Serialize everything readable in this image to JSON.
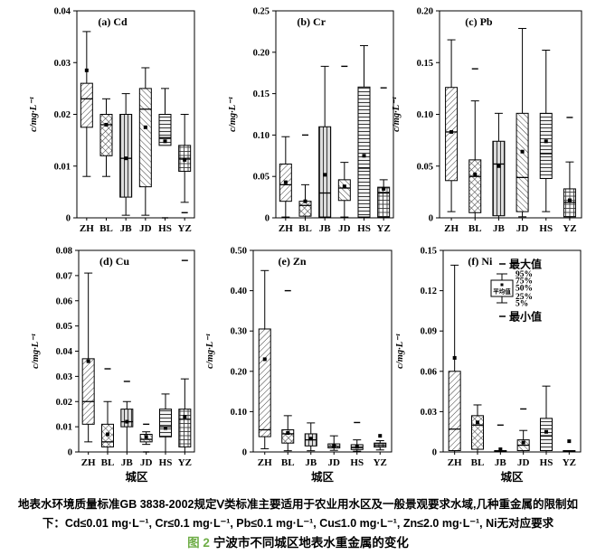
{
  "axis": {
    "ylabel": "c/mg·L⁻¹",
    "xlabel": "城区"
  },
  "categories": [
    "ZH",
    "BL",
    "JB",
    "JD",
    "HS",
    "YZ"
  ],
  "city_patterns": {
    "ZH": "diagonal-up",
    "BL": "crosshatch",
    "JB": "vertical-lines",
    "JD": "diagonal-down",
    "HS": "horizontal-lines",
    "YZ": "grid"
  },
  "legend": {
    "max_label": "最大值",
    "min_label": "最小值",
    "mean_label": "平均值",
    "percent_labels": [
      "95%",
      "75%",
      "50%",
      "25%",
      "5%"
    ]
  },
  "caption": {
    "line1": "地表水环境质量标准GB 3838-2002规定Ⅴ类标准主要适用于农业用水区及一般景观要求水域,几种重金属的限制如",
    "line2": "下：Cd≤0.01 mg·L⁻¹, Cr≤0.1 mg·L⁻¹, Pb≤0.1 mg·L⁻¹, Cu≤1.0 mg·L⁻¹, Zn≤2.0 mg·L⁻¹, Ni无对应要求",
    "fig_label": "图 2",
    "fig_title": "宁波市不同城区地表水重金属的变化",
    "fig_label_color": "#6fad47"
  },
  "chart_data": [
    {
      "type": "box",
      "panel": "(a) Cd",
      "ylabel": "c/mg·L⁻¹",
      "ylim": [
        0,
        0.04
      ],
      "yticks": [
        0,
        0.01,
        0.02,
        0.03,
        0.04
      ],
      "ytick_labels": [
        "0",
        "0.01",
        "0.02",
        "0.03",
        "0.04"
      ],
      "boxes": [
        {
          "city": "ZH",
          "whisker_low": 0.008,
          "q1": 0.0175,
          "median": 0.023,
          "q3": 0.026,
          "whisker_high": 0.036,
          "mean": 0.0285
        },
        {
          "city": "BL",
          "whisker_low": 0.008,
          "q1": 0.012,
          "median": 0.018,
          "q3": 0.02,
          "whisker_high": 0.023,
          "mean": 0.018
        },
        {
          "city": "JB",
          "whisker_low": 0.0005,
          "q1": 0.004,
          "median": 0.0115,
          "q3": 0.02,
          "whisker_high": 0.024,
          "mean": 0.0115
        },
        {
          "city": "JD",
          "whisker_low": 0.0005,
          "q1": 0.006,
          "median": 0.021,
          "q3": 0.025,
          "whisker_high": 0.029,
          "mean": 0.0175
        },
        {
          "city": "HS",
          "whisker_low": 0.014,
          "q1": 0.014,
          "median": 0.0155,
          "q3": 0.02,
          "whisker_high": 0.025,
          "mean": 0.0148,
          "min": 0.0
        },
        {
          "city": "YZ",
          "whisker_low": 0.003,
          "q1": 0.009,
          "median": 0.0115,
          "q3": 0.014,
          "whisker_high": 0.02,
          "mean": 0.0112,
          "min": 0.001
        }
      ]
    },
    {
      "type": "box",
      "panel": "(b) Cr",
      "ylabel": "c/mg·L⁻¹",
      "ylim": [
        0,
        0.25
      ],
      "yticks": [
        0,
        0.05,
        0.1,
        0.15,
        0.2,
        0.25
      ],
      "ytick_labels": [
        "0",
        "0.05",
        "0.10",
        "0.15",
        "0.20",
        "0.25"
      ],
      "boxes": [
        {
          "city": "ZH",
          "whisker_low": 0.001,
          "q1": 0.02,
          "median": 0.04,
          "q3": 0.065,
          "whisker_high": 0.098,
          "mean": 0.043
        },
        {
          "city": "BL",
          "whisker_low": 0.0,
          "q1": 0.002,
          "median": 0.015,
          "q3": 0.02,
          "whisker_high": 0.04,
          "mean": 0.02,
          "max": 0.1
        },
        {
          "city": "JB",
          "whisker_low": 0.0,
          "q1": 0.001,
          "median": 0.03,
          "q3": 0.11,
          "whisker_high": 0.183,
          "mean": 0.052
        },
        {
          "city": "JD",
          "whisker_low": 0.001,
          "q1": 0.021,
          "median": 0.036,
          "q3": 0.046,
          "whisker_high": 0.067,
          "mean": 0.038,
          "max": 0.183
        },
        {
          "city": "HS",
          "whisker_low": 0.0,
          "q1": 0.001,
          "median": 0.06,
          "q3": 0.158,
          "whisker_high": 0.208,
          "mean": 0.075
        },
        {
          "city": "YZ",
          "whisker_low": 0.0,
          "q1": 0.001,
          "median": 0.03,
          "q3": 0.037,
          "whisker_high": 0.046,
          "mean": 0.035,
          "max": 0.157
        }
      ]
    },
    {
      "type": "box",
      "panel": "(c) Pb",
      "ylabel": "c/mg·L⁻¹",
      "ylim": [
        0,
        0.2
      ],
      "yticks": [
        0,
        0.05,
        0.1,
        0.15,
        0.2
      ],
      "ytick_labels": [
        "0",
        "0.05",
        "0.10",
        "0.15",
        "0.20"
      ],
      "boxes": [
        {
          "city": "ZH",
          "whisker_low": 0.006,
          "q1": 0.036,
          "median": 0.083,
          "q3": 0.126,
          "whisker_high": 0.172,
          "mean": 0.083
        },
        {
          "city": "BL",
          "whisker_low": 0.0,
          "q1": 0.005,
          "median": 0.04,
          "q3": 0.056,
          "whisker_high": 0.113,
          "mean": 0.042,
          "max": 0.144
        },
        {
          "city": "JB",
          "whisker_low": 0.0,
          "q1": 0.002,
          "median": 0.052,
          "q3": 0.074,
          "whisker_high": 0.101,
          "mean": 0.05
        },
        {
          "city": "JD",
          "whisker_low": 0.001,
          "q1": 0.006,
          "median": 0.039,
          "q3": 0.101,
          "whisker_high": 0.183,
          "mean": 0.064
        },
        {
          "city": "HS",
          "whisker_low": 0.006,
          "q1": 0.038,
          "median": 0.062,
          "q3": 0.101,
          "whisker_high": 0.162,
          "mean": 0.074
        },
        {
          "city": "YZ",
          "whisker_low": 0.0,
          "q1": 0.001,
          "median": 0.015,
          "q3": 0.028,
          "whisker_high": 0.054,
          "mean": 0.017,
          "max": 0.097
        }
      ]
    },
    {
      "type": "box",
      "panel": "(d) Cu",
      "ylabel": "c/mg·L⁻¹",
      "ylim": [
        0,
        0.08
      ],
      "yticks": [
        0,
        0.01,
        0.02,
        0.03,
        0.04,
        0.05,
        0.06,
        0.07,
        0.08
      ],
      "ytick_labels": [
        "0",
        "0.01",
        "0.02",
        "0.03",
        "0.04",
        "0.05",
        "0.06",
        "0.07",
        "0.08"
      ],
      "boxes": [
        {
          "city": "ZH",
          "whisker_low": 0.004,
          "q1": 0.011,
          "median": 0.02,
          "q3": 0.037,
          "whisker_high": 0.071,
          "mean": 0.036
        },
        {
          "city": "BL",
          "whisker_low": 0.0,
          "q1": 0.002,
          "median": 0.004,
          "q3": 0.011,
          "whisker_high": 0.02,
          "mean": 0.007,
          "max": 0.033
        },
        {
          "city": "JB",
          "whisker_low": 0.0,
          "q1": 0.01,
          "median": 0.012,
          "q3": 0.017,
          "whisker_high": 0.02,
          "mean": 0.012,
          "max": 0.028
        },
        {
          "city": "JD",
          "whisker_low": 0.003,
          "q1": 0.004,
          "median": 0.005,
          "q3": 0.007,
          "whisker_high": 0.008,
          "mean": 0.006,
          "max": 0.011,
          "min": 0.0
        },
        {
          "city": "HS",
          "whisker_low": 0.0,
          "q1": 0.006,
          "median": 0.01,
          "q3": 0.017,
          "whisker_high": 0.023,
          "mean": 0.0095
        },
        {
          "city": "YZ",
          "whisker_low": 0.0,
          "q1": 0.002,
          "median": 0.013,
          "q3": 0.017,
          "whisker_high": 0.029,
          "mean": 0.014,
          "max": 0.076
        }
      ]
    },
    {
      "type": "box",
      "panel": "(e) Zn",
      "ylabel": "c/mg·L⁻¹",
      "ylim": [
        0,
        0.5
      ],
      "yticks": [
        0,
        0.1,
        0.2,
        0.3,
        0.4,
        0.5
      ],
      "ytick_labels": [
        "0",
        "0.10",
        "0.20",
        "0.30",
        "0.40",
        "0.50"
      ],
      "boxes": [
        {
          "city": "ZH",
          "whisker_low": 0.008,
          "q1": 0.038,
          "median": 0.055,
          "q3": 0.305,
          "whisker_high": 0.45,
          "mean": 0.23
        },
        {
          "city": "BL",
          "whisker_low": 0.003,
          "q1": 0.022,
          "median": 0.045,
          "q3": 0.055,
          "whisker_high": 0.09,
          "mean": 0.047,
          "max": 0.4
        },
        {
          "city": "JB",
          "whisker_low": 0.003,
          "q1": 0.015,
          "median": 0.03,
          "q3": 0.045,
          "whisker_high": 0.072,
          "mean": 0.033
        },
        {
          "city": "JD",
          "whisker_low": 0.004,
          "q1": 0.01,
          "median": 0.014,
          "q3": 0.02,
          "whisker_high": 0.04,
          "mean": 0.015
        },
        {
          "city": "HS",
          "whisker_low": 0.002,
          "q1": 0.006,
          "median": 0.011,
          "q3": 0.018,
          "whisker_high": 0.03,
          "mean": 0.013,
          "max": 0.073
        },
        {
          "city": "YZ",
          "whisker_low": 0.005,
          "q1": 0.012,
          "median": 0.016,
          "q3": 0.022,
          "whisker_high": 0.028,
          "mean": 0.04
        }
      ]
    },
    {
      "type": "box",
      "panel": "(f) Ni",
      "ylabel": "c/mg·L⁻¹",
      "ylim": [
        0,
        0.15
      ],
      "yticks": [
        0,
        0.03,
        0.06,
        0.09,
        0.12,
        0.15
      ],
      "ytick_labels": [
        "0",
        "0.03",
        "0.06",
        "0.09",
        "0.12",
        "0.15"
      ],
      "boxes": [
        {
          "city": "ZH",
          "whisker_low": 0.0,
          "q1": 0.001,
          "median": 0.017,
          "q3": 0.06,
          "whisker_high": 0.139,
          "mean": 0.07
        },
        {
          "city": "BL",
          "whisker_low": 0.0,
          "q1": 0.002,
          "median": 0.02,
          "q3": 0.027,
          "whisker_high": 0.035,
          "mean": 0.022
        },
        {
          "city": "JB",
          "whisker_low": 0.0,
          "q1": 0.0,
          "median": 0.0005,
          "q3": 0.001,
          "whisker_high": 0.001,
          "mean": 0.002,
          "max": 0.02
        },
        {
          "city": "JD",
          "whisker_low": 0.0,
          "q1": 0.001,
          "median": 0.005,
          "q3": 0.009,
          "whisker_high": 0.016,
          "mean": 0.007,
          "max": 0.032
        },
        {
          "city": "HS",
          "whisker_low": 0.0,
          "q1": 0.001,
          "median": 0.012,
          "q3": 0.025,
          "whisker_high": 0.049,
          "mean": 0.015
        },
        {
          "city": "YZ",
          "whisker_low": 0.0,
          "q1": 0.0,
          "median": 0.0005,
          "q3": 0.001,
          "whisker_high": 0.001,
          "mean": 0.008
        }
      ]
    }
  ]
}
